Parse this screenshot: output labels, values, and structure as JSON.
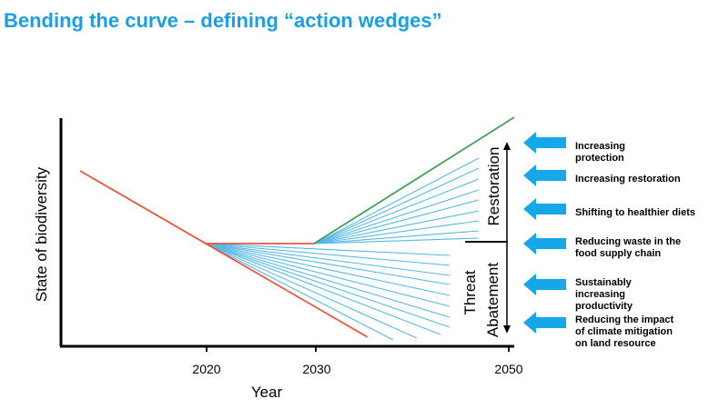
{
  "title": "Bending the curve – defining “action wedges”",
  "x_axis": {
    "label": "Year",
    "ticks": [
      "2020",
      "2030",
      "2050"
    ]
  },
  "y_axis": {
    "label": "State of biodiversity"
  },
  "segments": {
    "upper": "Restoration",
    "lower_line1": "Threat",
    "lower_line2": "Abatement"
  },
  "actions": [
    {
      "lines": [
        "Increasing",
        "protection"
      ]
    },
    {
      "lines": [
        "Increasing restoration"
      ]
    },
    {
      "lines": [
        "Shifting to healthier diets"
      ]
    },
    {
      "lines": [
        "Reducing waste in the",
        "food supply chain"
      ]
    },
    {
      "lines": [
        "Sustainably",
        "increasing",
        "productivity"
      ]
    },
    {
      "lines": [
        "Reducing the impact",
        "of climate mitigation",
        "on land resource"
      ]
    }
  ],
  "colors": {
    "title": "#1a9fe0",
    "baseline": "#e8553a",
    "target": "#3fa15a",
    "wedge": "#55b9e6",
    "arrow": "#15a7e8"
  },
  "icons": [
    "arrow-left-icon",
    "double-arrow-vertical-icon"
  ]
}
